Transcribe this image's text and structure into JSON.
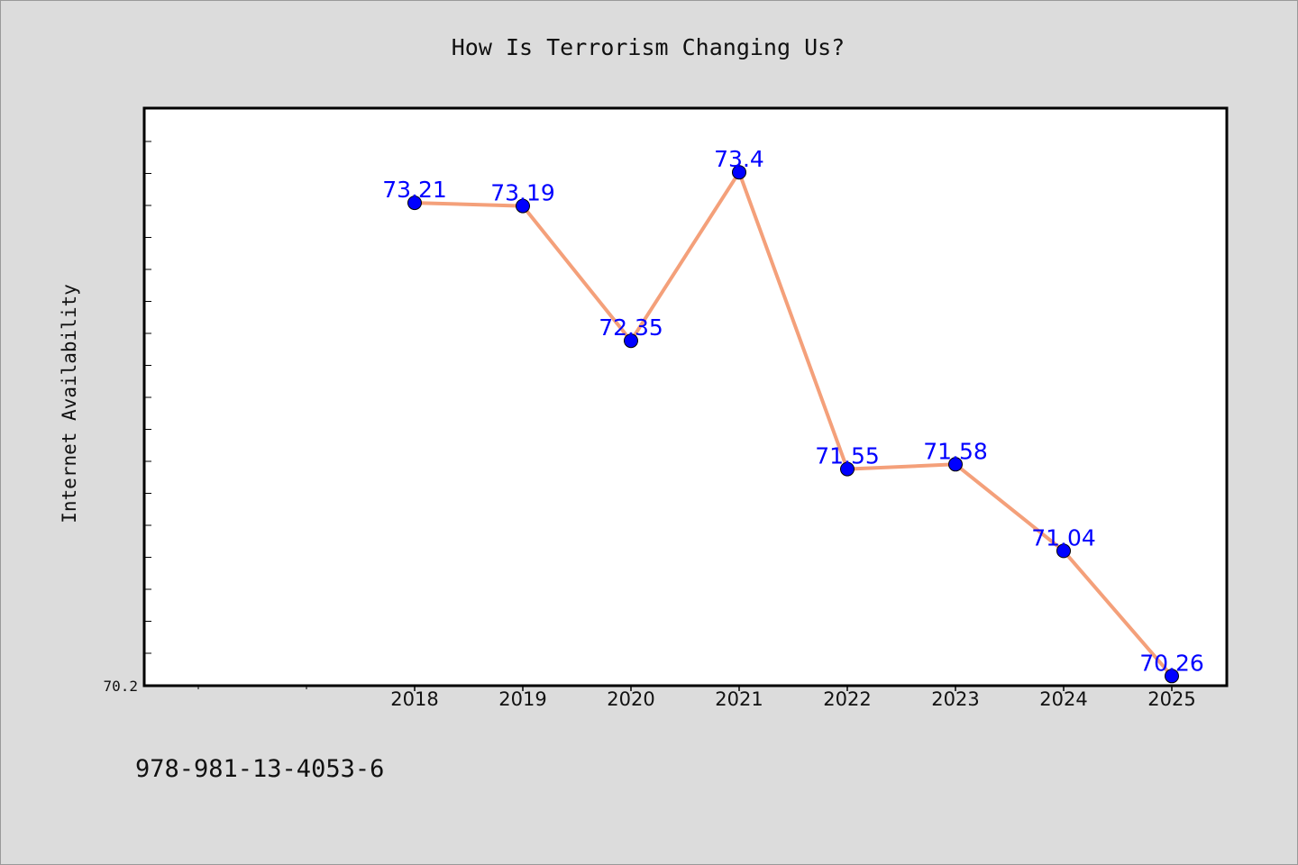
{
  "chart_data": {
    "type": "line",
    "title": "How Is Terrorism Changing Us?",
    "xlabel": "",
    "ylabel": "Internet Availability",
    "categories": [
      "2018",
      "2019",
      "2020",
      "2021",
      "2022",
      "2023",
      "2024",
      "2025"
    ],
    "series": [
      {
        "values": [
          73.21,
          73.19,
          72.35,
          73.4,
          71.55,
          71.58,
          71.04,
          70.26
        ],
        "labels": [
          "73.21",
          "73.19",
          "72.35",
          "73.4",
          "71.55",
          "71.58",
          "71.04",
          "70.26"
        ],
        "line_color": "#f4a07a",
        "marker_color": "#0000ff"
      }
    ],
    "ylim": [
      70.2,
      73.8
    ],
    "ytick_labels": [
      "70.2"
    ],
    "grid": false,
    "legend": "none",
    "colors": {
      "background": "#dcdcdc",
      "plot_background": "#ffffff",
      "data_label": "#0000ff"
    }
  },
  "footer": {
    "isbn": "978-981-13-4053-6"
  }
}
